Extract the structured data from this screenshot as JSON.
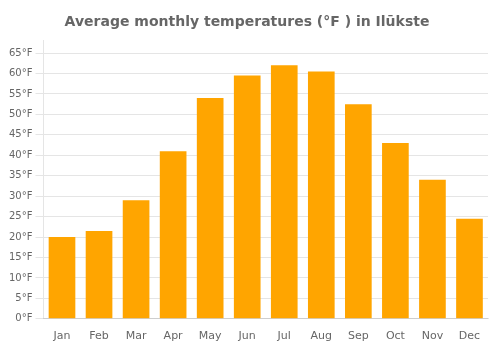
{
  "chart_data": {
    "type": "bar",
    "title": "Average monthly temperatures (°F ) in Ilūkste",
    "categories": [
      "Jan",
      "Feb",
      "Mar",
      "Apr",
      "May",
      "Jun",
      "Jul",
      "Aug",
      "Sep",
      "Oct",
      "Nov",
      "Dec"
    ],
    "values": [
      20.0,
      21.5,
      29.0,
      41.0,
      54.0,
      59.5,
      62.0,
      60.5,
      52.5,
      43.0,
      34.0,
      24.5
    ],
    "color": "#FFA500",
    "ylim": [
      0,
      68
    ],
    "yticks": [
      {
        "value": 0,
        "label": "0°F"
      },
      {
        "value": 5,
        "label": "5°F"
      },
      {
        "value": 10,
        "label": "10°F"
      },
      {
        "value": 15,
        "label": "15°F"
      },
      {
        "value": 20,
        "label": "20°F"
      },
      {
        "value": 25,
        "label": "25°F"
      },
      {
        "value": 30,
        "label": "30°F"
      },
      {
        "value": 35,
        "label": "35°F"
      },
      {
        "value": 40,
        "label": "40°F"
      },
      {
        "value": 45,
        "label": "45°F"
      },
      {
        "value": 50,
        "label": "50°F"
      },
      {
        "value": 55,
        "label": "55°F"
      },
      {
        "value": 60,
        "label": "60°F"
      },
      {
        "value": 65,
        "label": "65°F"
      }
    ],
    "grid": true
  }
}
